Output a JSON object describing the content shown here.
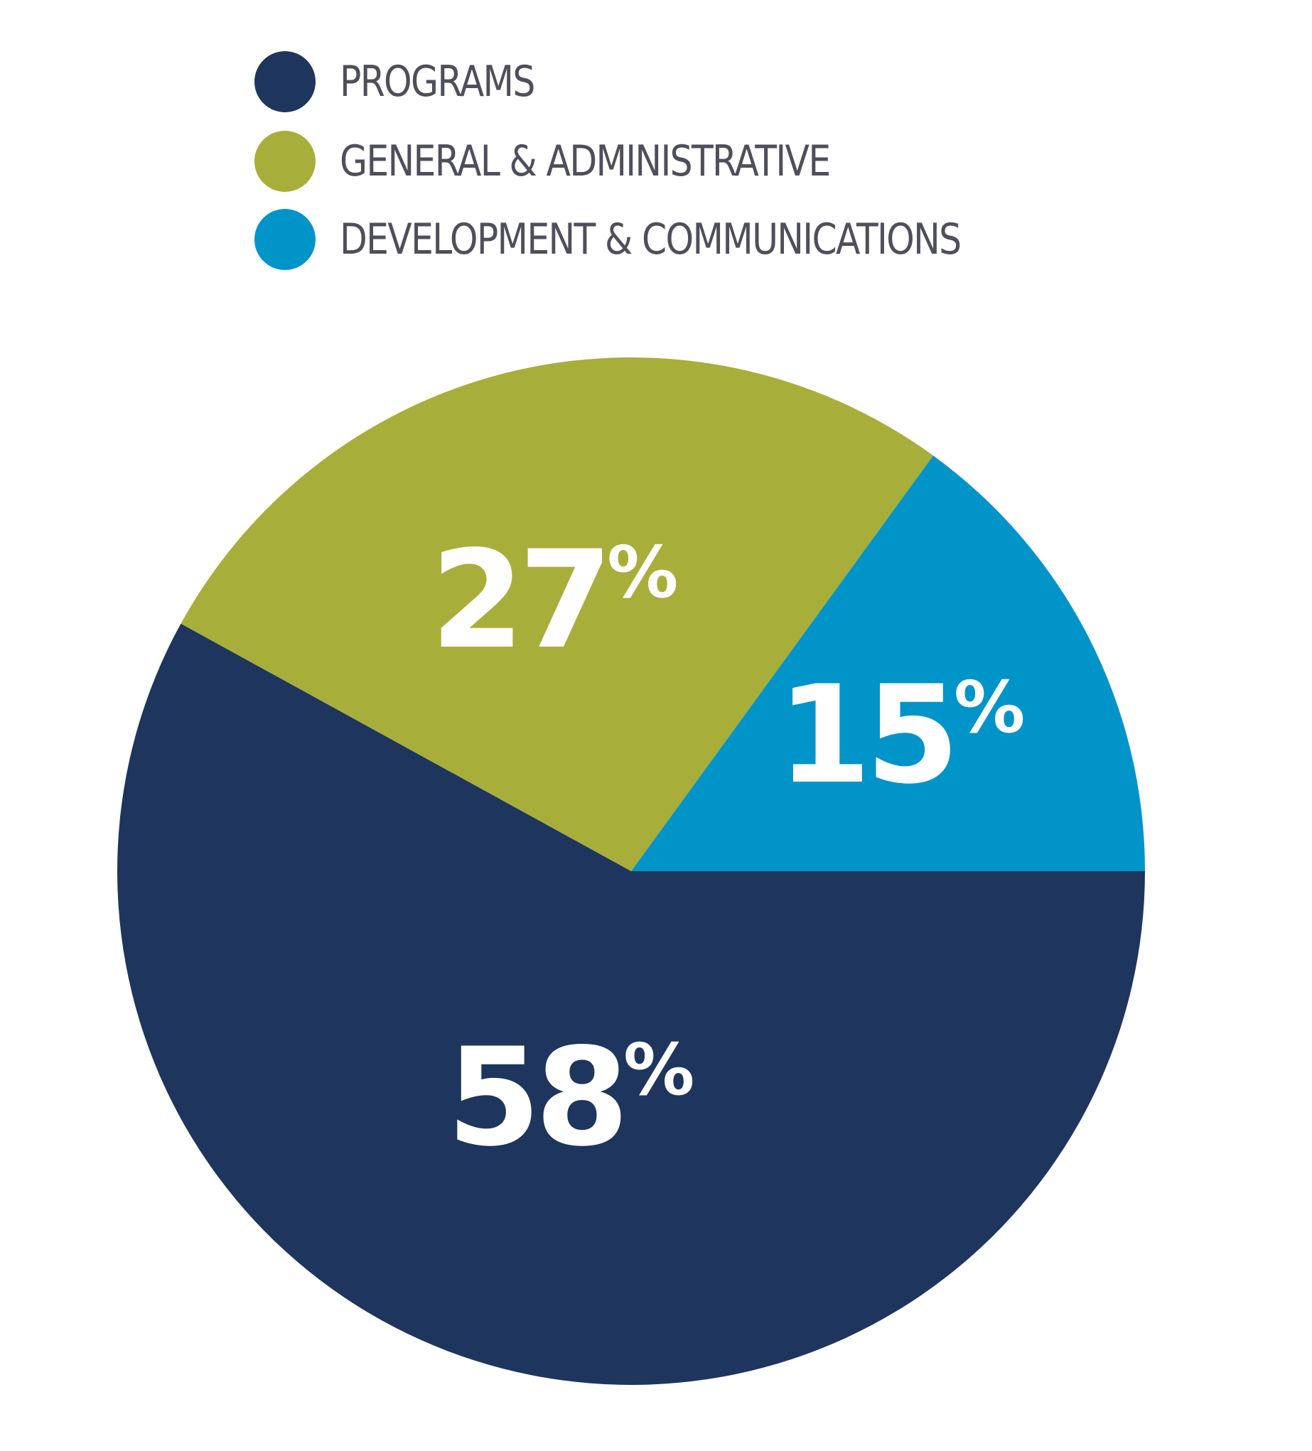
{
  "chart_data": {
    "type": "pie",
    "title": "",
    "legend_position": "top-left",
    "slices": [
      {
        "name": "PROGRAMS",
        "value": 58,
        "label_number": "58",
        "label_suffix": "%",
        "color": "#1e355e"
      },
      {
        "name": "GENERAL & ADMINISTRATIVE",
        "value": 27,
        "label_number": "27",
        "label_suffix": "%",
        "color": "#a8ae3a"
      },
      {
        "name": "DEVELOPMENT & COMMUNICATIONS",
        "value": 15,
        "label_number": "15",
        "label_suffix": "%",
        "color": "#0094c9"
      }
    ]
  },
  "legend": {
    "items": [
      {
        "label": "PROGRAMS",
        "color": "#1e355e"
      },
      {
        "label": "GENERAL & ADMINISTRATIVE",
        "color": "#a8ae3a"
      },
      {
        "label": "DEVELOPMENT & COMMUNICATIONS",
        "color": "#0094c9"
      }
    ]
  }
}
